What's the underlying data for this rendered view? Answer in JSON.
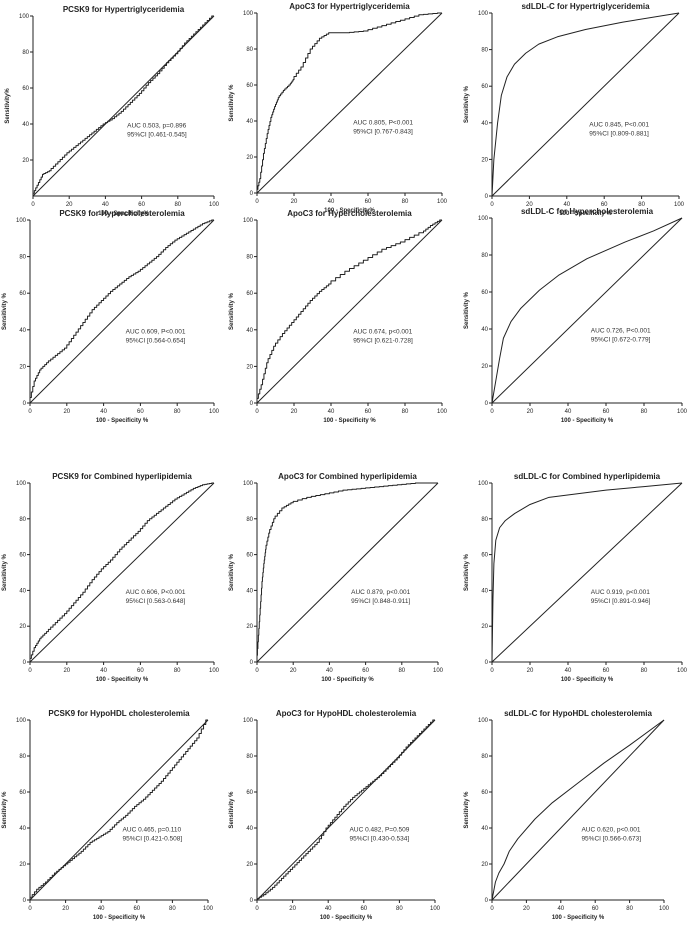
{
  "chart_data": [
    {
      "type": "line",
      "title": "PCSK9 for Hypertriglyceridemia",
      "xlabel": "100 - Specificity%",
      "ylabel": "Sensitivity%",
      "xlim": [
        0,
        100
      ],
      "ylim": [
        0,
        100
      ],
      "xticks": [
        0,
        20,
        40,
        60,
        80,
        100
      ],
      "yticks": [
        20,
        40,
        60,
        80,
        100
      ],
      "annotation": [
        "AUC 0.503, p=0.896",
        "95%CI [0.461-0.545]"
      ],
      "style": "step",
      "x": [
        0,
        3,
        6,
        10,
        15,
        20,
        25,
        30,
        35,
        40,
        45,
        50,
        55,
        60,
        65,
        70,
        75,
        80,
        85,
        90,
        95,
        100
      ],
      "y": [
        0,
        6,
        12,
        14,
        19,
        24,
        28,
        32,
        36,
        40,
        43,
        47,
        52,
        57,
        63,
        68,
        74,
        79,
        85,
        90,
        95,
        100
      ]
    },
    {
      "type": "line",
      "title": "ApoC3 for Hypertriglyceridemia",
      "xlabel": "100 - Specificity%",
      "ylabel": "Sensitivity %",
      "xlim": [
        0,
        100
      ],
      "ylim": [
        0,
        100
      ],
      "xticks": [
        0,
        20,
        40,
        60,
        80,
        100
      ],
      "yticks": [
        0,
        20,
        40,
        60,
        80,
        100
      ],
      "annotation": [
        "AUC 0.805, P<0.001",
        "95%CI [0.767-0.843]"
      ],
      "style": "step",
      "x": [
        0,
        2,
        4,
        6,
        8,
        10,
        12,
        15,
        18,
        20,
        25,
        30,
        35,
        40,
        50,
        60,
        70,
        80,
        90,
        100
      ],
      "y": [
        0,
        8,
        22,
        33,
        42,
        48,
        53,
        57,
        60,
        63,
        70,
        80,
        86,
        89,
        89,
        90,
        93,
        96,
        99,
        100
      ]
    },
    {
      "type": "line",
      "title": "sdLDL-C for Hypertriglyceridemia",
      "xlabel": "100 - Specificity %",
      "ylabel": "Sensitivity %",
      "xlim": [
        0,
        100
      ],
      "ylim": [
        0,
        100
      ],
      "xticks": [
        0,
        20,
        40,
        60,
        80,
        100
      ],
      "yticks": [
        0,
        20,
        40,
        60,
        80,
        100
      ],
      "annotation": [
        "AUC 0.845, P<0.001",
        "95%CI [0.809-0.881]"
      ],
      "style": "smooth",
      "x": [
        0,
        1,
        3,
        5,
        8,
        12,
        18,
        25,
        35,
        50,
        70,
        100
      ],
      "y": [
        0,
        20,
        40,
        55,
        65,
        72,
        78,
        83,
        87,
        91,
        95,
        100
      ]
    },
    {
      "type": "line",
      "title": "PCSK9 for Hypercholesterolemia",
      "xlabel": "100 - Specificity %",
      "ylabel": "Sensitivity %",
      "xlim": [
        0,
        100
      ],
      "ylim": [
        0,
        100
      ],
      "xticks": [
        0,
        20,
        40,
        60,
        80,
        100
      ],
      "yticks": [
        0,
        20,
        40,
        60,
        80,
        100
      ],
      "annotation": [
        "AUC 0.609, P<0.001",
        "95%CI [0.564-0.654]"
      ],
      "style": "step",
      "x": [
        0,
        3,
        6,
        10,
        15,
        20,
        25,
        30,
        35,
        40,
        45,
        50,
        55,
        60,
        65,
        70,
        75,
        80,
        85,
        90,
        95,
        100
      ],
      "y": [
        0,
        12,
        18,
        22,
        26,
        30,
        37,
        44,
        51,
        56,
        61,
        65,
        69,
        72,
        76,
        80,
        85,
        89,
        92,
        95,
        98,
        100
      ]
    },
    {
      "type": "line",
      "title": "ApoC3 for Hypercholesterolemia",
      "xlabel": "100 - Specificity %",
      "ylabel": "Sensitivity %",
      "xlim": [
        0,
        100
      ],
      "ylim": [
        0,
        100
      ],
      "xticks": [
        0,
        20,
        40,
        60,
        80,
        100
      ],
      "yticks": [
        0,
        20,
        40,
        60,
        80,
        100
      ],
      "annotation": [
        "AUC 0.674, p<0.001",
        "95%CI [0.621-0.728]"
      ],
      "style": "step",
      "x": [
        0,
        3,
        6,
        10,
        15,
        20,
        25,
        30,
        35,
        40,
        50,
        60,
        70,
        80,
        90,
        95,
        100
      ],
      "y": [
        0,
        10,
        22,
        31,
        38,
        44,
        50,
        56,
        61,
        65,
        72,
        78,
        84,
        88,
        93,
        97,
        100
      ]
    },
    {
      "type": "line",
      "title": "sdLDL-C for Hypercholesterolemia",
      "xlabel": "100 - Specificity %",
      "ylabel": "Sensitivity %",
      "xlim": [
        0,
        100
      ],
      "ylim": [
        0,
        100
      ],
      "xticks": [
        0,
        20,
        40,
        60,
        80,
        100
      ],
      "yticks": [
        0,
        20,
        40,
        60,
        80,
        100
      ],
      "annotation": [
        "AUC 0.726, P<0.001",
        "95%CI [0.672-0.779]"
      ],
      "style": "smooth",
      "x": [
        0,
        2,
        4,
        6,
        10,
        15,
        25,
        35,
        50,
        70,
        85,
        100
      ],
      "y": [
        0,
        12,
        24,
        35,
        44,
        51,
        61,
        69,
        78,
        87,
        93,
        100
      ]
    },
    {
      "type": "line",
      "title": "PCSK9 for Combined hyperlipidemia",
      "xlabel": "100 - Specificity %",
      "ylabel": "Sensitivity %",
      "xlim": [
        0,
        100
      ],
      "ylim": [
        0,
        100
      ],
      "xticks": [
        0,
        20,
        40,
        60,
        80,
        100
      ],
      "yticks": [
        0,
        20,
        40,
        60,
        80,
        100
      ],
      "annotation": [
        "AUC 0.606, P<0.001",
        "95%CI [0.563-0.648]"
      ],
      "style": "step",
      "x": [
        0,
        3,
        6,
        10,
        15,
        20,
        25,
        30,
        35,
        40,
        45,
        50,
        55,
        60,
        65,
        70,
        75,
        80,
        85,
        90,
        95,
        100
      ],
      "y": [
        0,
        8,
        13,
        17,
        22,
        27,
        33,
        39,
        46,
        52,
        57,
        63,
        68,
        73,
        79,
        83,
        87,
        91,
        94,
        97,
        99,
        100
      ]
    },
    {
      "type": "line",
      "title": "ApoC3 for Combined hyperlipidemia",
      "xlabel": "100 - Specificity %",
      "ylabel": "Sensitivity %",
      "xlim": [
        0,
        100
      ],
      "ylim": [
        0,
        100
      ],
      "xticks": [
        0,
        20,
        40,
        60,
        80,
        100
      ],
      "yticks": [
        0,
        20,
        40,
        60,
        80,
        100
      ],
      "annotation": [
        "AUC 0.879, p<0.001",
        "95%CI [0.848-0.911]"
      ],
      "style": "step",
      "x": [
        0,
        1,
        2,
        3,
        4,
        5,
        7,
        10,
        15,
        20,
        30,
        40,
        50,
        60,
        70,
        80,
        90,
        100
      ],
      "y": [
        0,
        15,
        30,
        45,
        55,
        63,
        72,
        80,
        86,
        89,
        92,
        94,
        96,
        97,
        98,
        99,
        100,
        100
      ]
    },
    {
      "type": "line",
      "title": "sdLDL-C for Combined hyperlipidemia",
      "xlabel": "100 - Specificity %",
      "ylabel": "Sensitivity %",
      "xlim": [
        0,
        100
      ],
      "ylim": [
        0,
        100
      ],
      "xticks": [
        0,
        20,
        40,
        60,
        80,
        100
      ],
      "yticks": [
        0,
        20,
        40,
        60,
        80,
        100
      ],
      "annotation": [
        "AUC 0.919, p<0.001",
        "95%CI [0.891-0.946]"
      ],
      "style": "smooth",
      "x": [
        0,
        0.5,
        1,
        2,
        4,
        7,
        12,
        20,
        30,
        45,
        60,
        80,
        100
      ],
      "y": [
        0,
        35,
        55,
        68,
        75,
        79,
        83,
        88,
        92,
        94,
        96,
        98,
        100
      ]
    },
    {
      "type": "line",
      "title": "PCSK9 for HypoHDL cholesterolemia",
      "xlabel": "100 - Specificity %",
      "ylabel": "Sensitivity %",
      "xlim": [
        0,
        100
      ],
      "ylim": [
        0,
        100
      ],
      "xticks": [
        0,
        20,
        40,
        60,
        80,
        100
      ],
      "yticks": [
        0,
        20,
        40,
        60,
        80,
        100
      ],
      "annotation": [
        "AUC 0.465, p=0.110",
        "95%CI [0.421-0.508]"
      ],
      "style": "step",
      "x": [
        0,
        5,
        10,
        15,
        20,
        25,
        30,
        35,
        40,
        45,
        50,
        55,
        60,
        65,
        70,
        75,
        80,
        85,
        90,
        95,
        100
      ],
      "y": [
        0,
        6,
        10,
        15,
        19,
        23,
        27,
        32,
        35,
        38,
        43,
        47,
        52,
        56,
        61,
        66,
        72,
        78,
        84,
        90,
        100
      ]
    },
    {
      "type": "line",
      "title": "ApoC3 for HypoHDL cholesterolemia",
      "xlabel": "100 - Specificity %",
      "ylabel": "Sensitivity %",
      "xlim": [
        0,
        100
      ],
      "ylim": [
        0,
        100
      ],
      "xticks": [
        0,
        20,
        40,
        60,
        80,
        100
      ],
      "yticks": [
        0,
        20,
        40,
        60,
        80,
        100
      ],
      "annotation": [
        "AUC 0.482, P=0.509",
        "95%CI [0.430-0.534]"
      ],
      "style": "step",
      "x": [
        0,
        5,
        10,
        15,
        20,
        25,
        30,
        35,
        40,
        45,
        50,
        55,
        60,
        65,
        70,
        75,
        80,
        85,
        90,
        95,
        100
      ],
      "y": [
        0,
        3,
        7,
        12,
        17,
        22,
        27,
        32,
        40,
        46,
        52,
        57,
        61,
        65,
        69,
        74,
        79,
        85,
        90,
        95,
        100
      ]
    },
    {
      "type": "line",
      "title": "sdLDL-C for HypoHDL cholesterolemia",
      "xlabel": "100 - Specificity %",
      "ylabel": "Sensitivity %",
      "xlim": [
        0,
        100
      ],
      "ylim": [
        0,
        100
      ],
      "xticks": [
        0,
        20,
        40,
        60,
        80,
        100
      ],
      "yticks": [
        0,
        20,
        40,
        60,
        80,
        100
      ],
      "annotation": [
        "AUC 0.620, p<0.001",
        "95%CI [0.566-0.673]"
      ],
      "style": "smooth",
      "x": [
        0,
        2,
        4,
        7,
        10,
        15,
        25,
        35,
        50,
        65,
        80,
        100
      ],
      "y": [
        0,
        10,
        15,
        20,
        27,
        34,
        45,
        54,
        65,
        76,
        86,
        100
      ]
    }
  ]
}
